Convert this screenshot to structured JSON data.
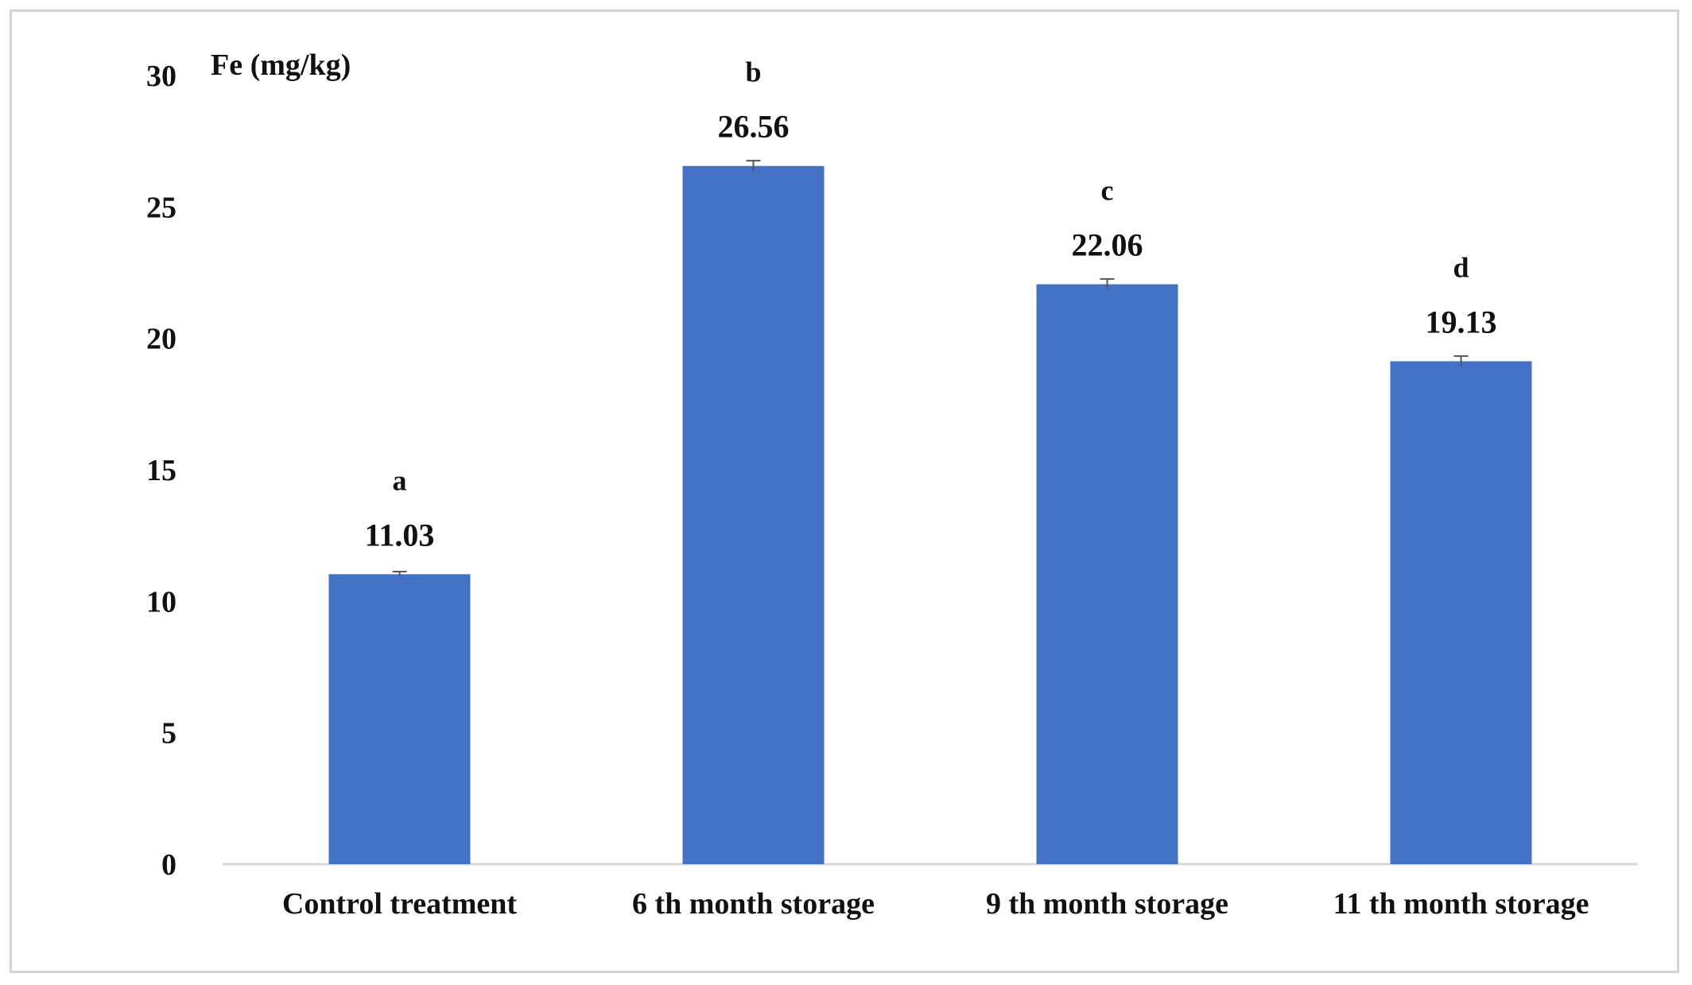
{
  "chart_data": {
    "type": "bar",
    "title": "",
    "ylabel": "Fe (mg/kg)",
    "xlabel": "",
    "categories": [
      "Control treatment",
      "6 th month storage",
      "9 th month storage",
      "11 th month storage"
    ],
    "values": [
      11.03,
      26.56,
      22.06,
      19.13
    ],
    "value_labels": [
      "11.03",
      "26.56",
      "22.06",
      "19.13"
    ],
    "significance_letters": [
      "a",
      "b",
      "c",
      "d"
    ],
    "error_bars": [
      0.1,
      0.2,
      0.2,
      0.2
    ],
    "ylim": [
      0,
      30
    ],
    "yticks": [
      0,
      5,
      10,
      15,
      20,
      25,
      30
    ],
    "grid": false,
    "legend": "none",
    "bar_color": "#4472c4",
    "axis_color": "#d9d9d9"
  }
}
